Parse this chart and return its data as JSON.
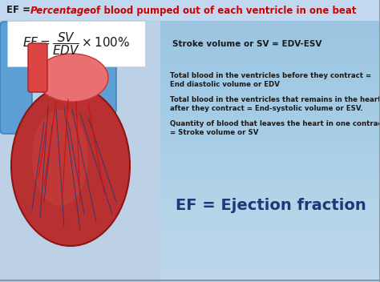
{
  "bg_color_top": "#c5d8ed",
  "bg_color_bottom": "#e8f2fa",
  "title_prefix": "EF = ",
  "title_italic_red": "Percentage",
  "title_suffix": " of blood pumped out of each ventricle in one beat",
  "formula_text": "$EF = \\dfrac{SV}{EDV} \\times 100\\%$",
  "stroke_volume_text": "Stroke volume or SV = EDV-ESV",
  "bullet1_line1": "Total blood in the ventricles before they contract =",
  "bullet1_line2": "End diastolic volume or EDV",
  "bullet2_line1": "Total blood in the ventricles that remains in the heart",
  "bullet2_line2": "after they contract = End-systolic volume or ESV.",
  "bullet3_line1": "Quantity of blood that leaves the heart in one contraction",
  "bullet3_line2": "= Stroke volume or SV",
  "ef_text": "EF = Ejection fraction",
  "title_color": "#cc0000",
  "title_black": "#1a1a1a",
  "stroke_color": "#1a1a1a",
  "bullet_color": "#1a1a1a",
  "ef_color": "#1a3a7a",
  "formula_color": "#1a1a1a",
  "white": "#ffffff",
  "left_panel_color": "#b8cfe0"
}
